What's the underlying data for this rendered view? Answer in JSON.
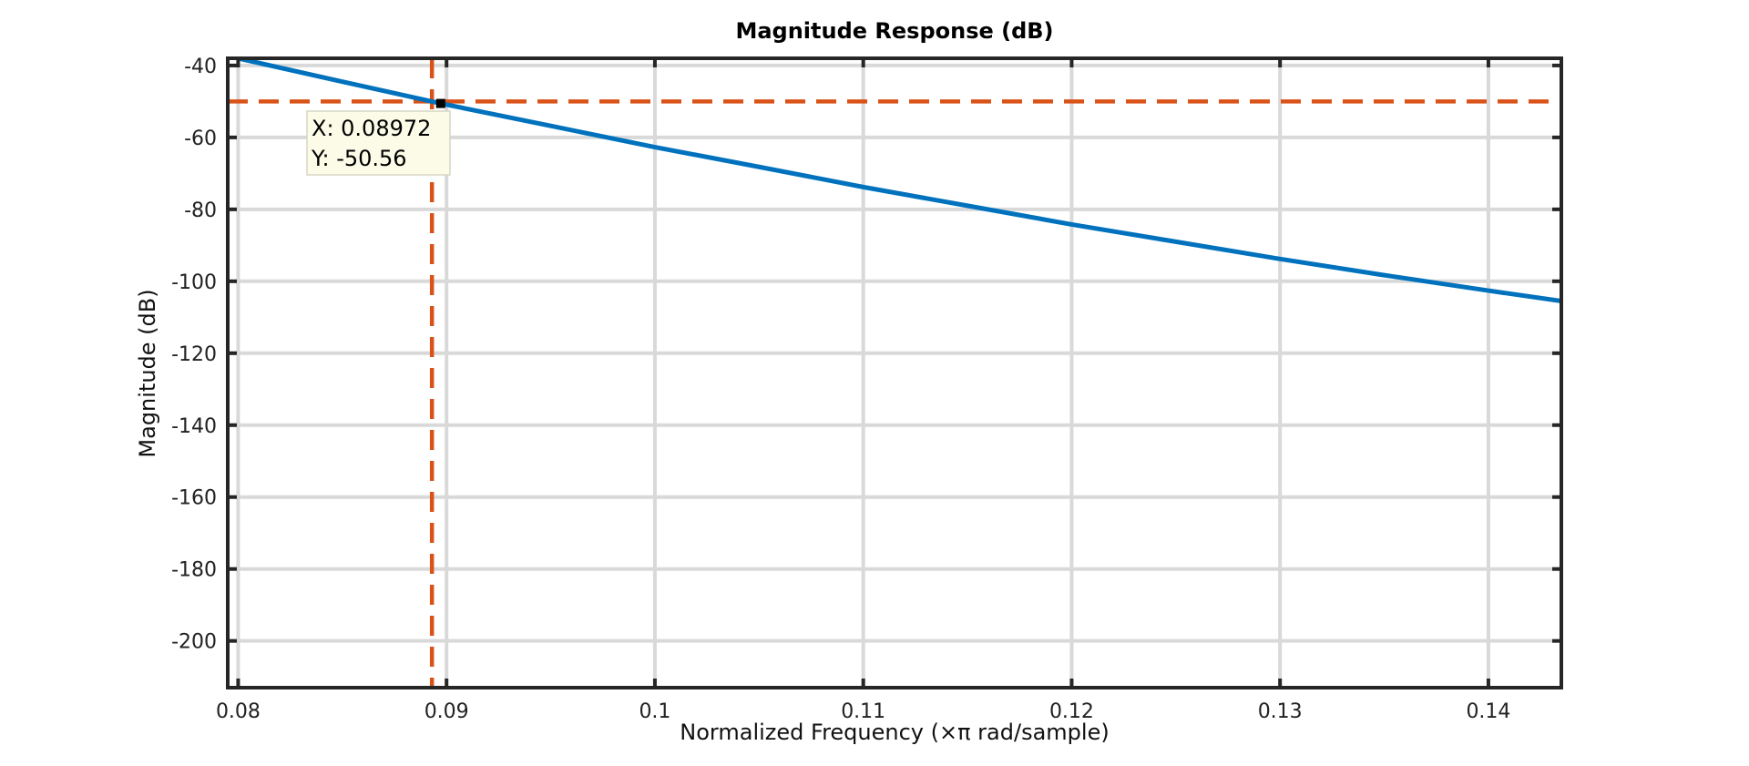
{
  "chart_data": {
    "type": "line",
    "title": "Magnitude Response (dB)",
    "xlabel": "Normalized Frequency (×π rad/sample)",
    "ylabel": "Magnitude (dB)",
    "xlim": [
      0.0795,
      0.1435
    ],
    "ylim": [
      -213,
      -38
    ],
    "xticks": [
      0.08,
      0.09,
      0.1,
      0.11,
      0.12,
      0.13,
      0.14
    ],
    "xtick_labels": [
      "0.08",
      "0.09",
      "0.1",
      "0.11",
      "0.12",
      "0.13",
      "0.14"
    ],
    "yticks": [
      -40,
      -60,
      -80,
      -100,
      -120,
      -140,
      -160,
      -180,
      -200
    ],
    "ytick_labels": [
      "-40",
      "-60",
      "-80",
      "-100",
      "-120",
      "-140",
      "-160",
      "-180",
      "-200"
    ],
    "grid": true,
    "series": [
      {
        "x": [
          0.0795,
          0.08,
          0.085,
          0.08972,
          0.095,
          0.1,
          0.105,
          0.11,
          0.115,
          0.12,
          0.125,
          0.13,
          0.135,
          0.14,
          0.1435
        ],
        "values": [
          -37.2,
          -38.0,
          -44.5,
          -50.56,
          -56.8,
          -62.7,
          -68.2,
          -73.8,
          -79.0,
          -84.2,
          -89.0,
          -93.8,
          -98.3,
          -102.6,
          -105.5
        ],
        "color": "#0072BD"
      }
    ],
    "reference_lines": [
      {
        "orientation": "horizontal",
        "value": -50,
        "color": "#D95319",
        "style": "dashed"
      },
      {
        "orientation": "vertical",
        "value": 0.0893,
        "color": "#D95319",
        "style": "dashed"
      }
    ],
    "datatip": {
      "x": 0.08972,
      "y": -50.56,
      "line1": "X: 0.08972",
      "line2": "Y: -50.56"
    }
  }
}
